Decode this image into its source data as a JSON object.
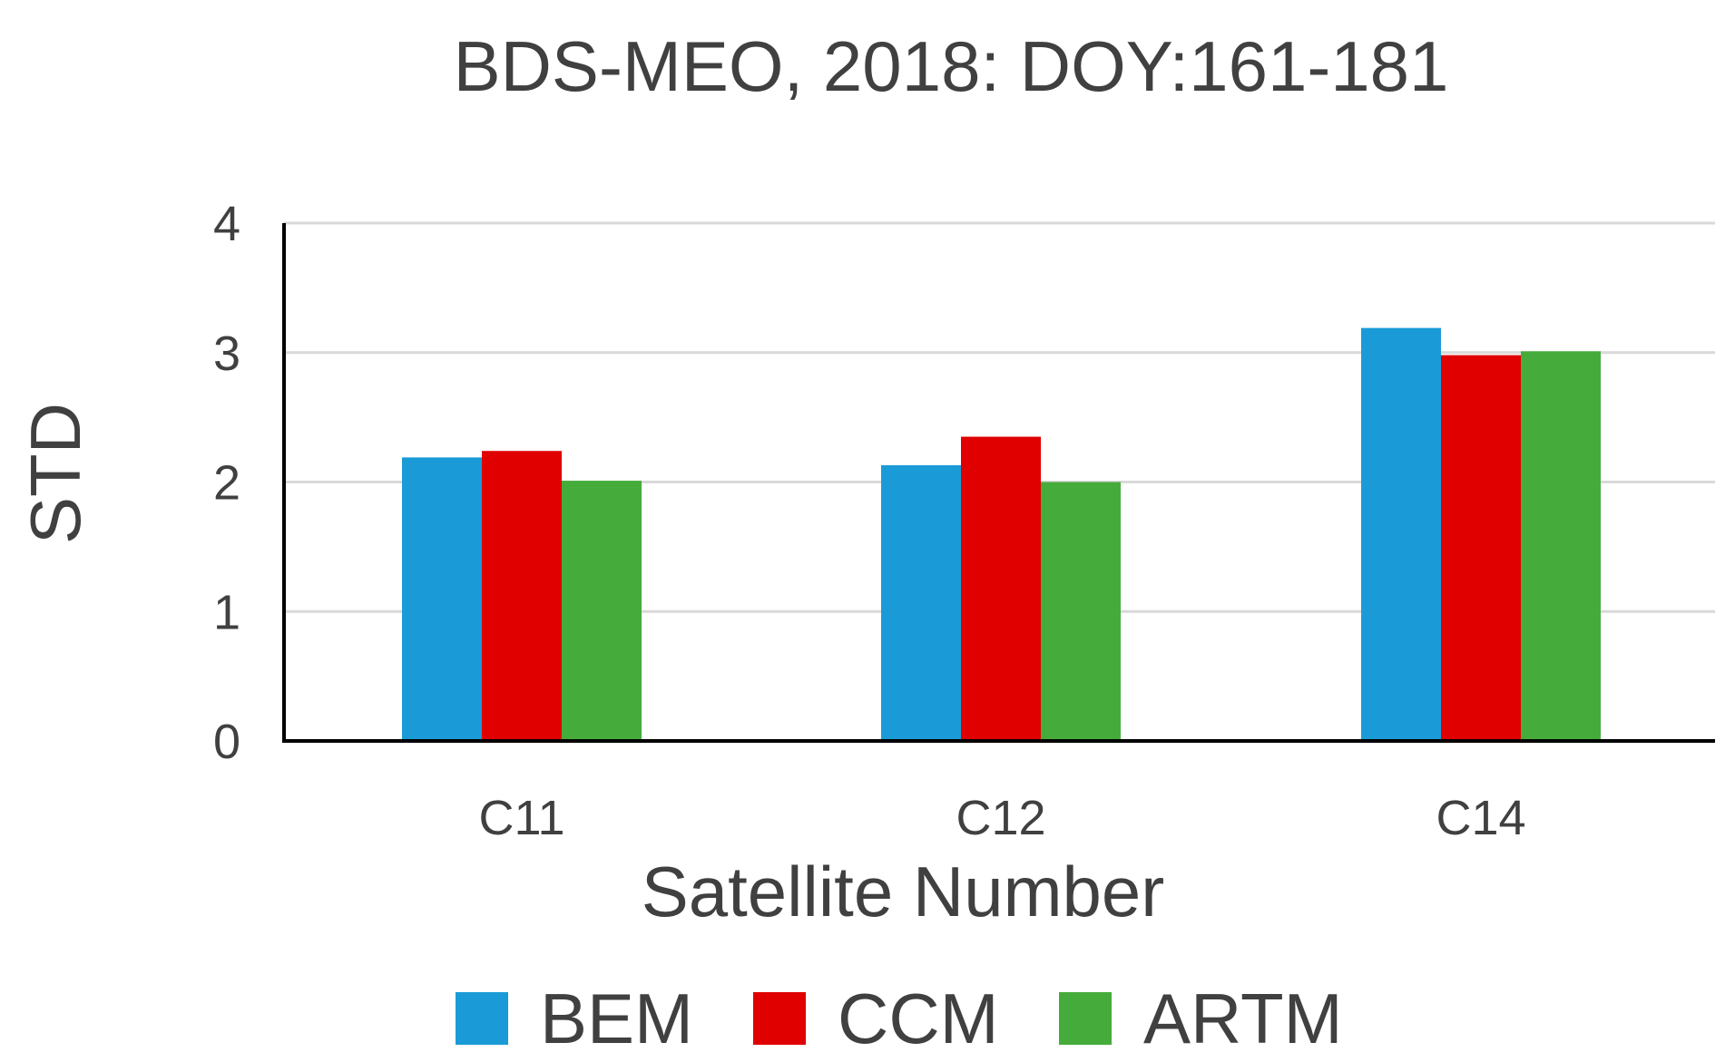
{
  "chart_data": {
    "type": "bar",
    "title": "BDS-MEO, 2018: DOY:161-181",
    "xlabel": "Satellite Number",
    "ylabel": "STD",
    "categories": [
      "C11",
      "C12",
      "C14"
    ],
    "ylim": [
      0,
      4
    ],
    "yticks": [
      "0",
      "1",
      "2",
      "3",
      "4"
    ],
    "grid": true,
    "legend_position": "bottom",
    "series": [
      {
        "name": "BEM",
        "color": "#1a9bd7",
        "values": [
          2.19,
          2.13,
          3.19
        ]
      },
      {
        "name": "CCM",
        "color": "#e00000",
        "values": [
          2.24,
          2.35,
          2.98
        ]
      },
      {
        "name": "ARTM",
        "color": "#45ac3b",
        "values": [
          2.01,
          2.0,
          3.01
        ]
      }
    ]
  }
}
